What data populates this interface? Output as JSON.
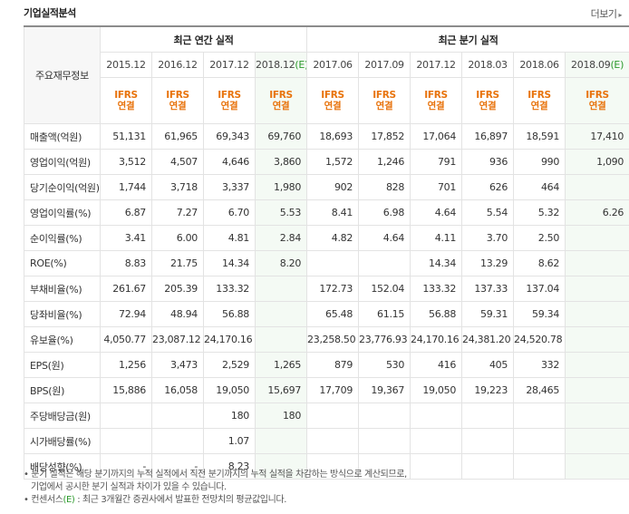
{
  "header": {
    "title": "기업실적분석",
    "more": "더보기"
  },
  "table": {
    "corner_label": "주요재무정보",
    "group_annual": "최근 연간 실적",
    "group_quarter": "최근 분기 실적",
    "periods": [
      "2015.12",
      "2016.12",
      "2017.12",
      "2018.12",
      "2017.06",
      "2017.09",
      "2017.12",
      "2018.03",
      "2018.06",
      "2018.09"
    ],
    "period_suffix": [
      "",
      "",
      "",
      "(E)",
      "",
      "",
      "",
      "",
      "",
      "(E)"
    ],
    "ifrs_line1": "IFRS",
    "ifrs_line2": "연결",
    "rows": [
      {
        "label": "매출액(억원)",
        "values": [
          "51,131",
          "61,965",
          "69,343",
          "69,760",
          "18,693",
          "17,852",
          "17,064",
          "16,897",
          "18,591",
          "17,410"
        ]
      },
      {
        "label": "영업이익(억원)",
        "values": [
          "3,512",
          "4,507",
          "4,646",
          "3,860",
          "1,572",
          "1,246",
          "791",
          "936",
          "990",
          "1,090"
        ]
      },
      {
        "label": "당기순이익(억원)",
        "values": [
          "1,744",
          "3,718",
          "3,337",
          "1,980",
          "902",
          "828",
          "701",
          "626",
          "464",
          ""
        ]
      },
      {
        "label": "영업이익률(%)",
        "values": [
          "6.87",
          "7.27",
          "6.70",
          "5.53",
          "8.41",
          "6.98",
          "4.64",
          "5.54",
          "5.32",
          "6.26"
        ]
      },
      {
        "label": "순이익률(%)",
        "values": [
          "3.41",
          "6.00",
          "4.81",
          "2.84",
          "4.82",
          "4.64",
          "4.11",
          "3.70",
          "2.50",
          ""
        ]
      },
      {
        "label": "ROE(%)",
        "values": [
          "8.83",
          "21.75",
          "14.34",
          "8.20",
          "",
          "",
          "14.34",
          "13.29",
          "8.62",
          ""
        ]
      },
      {
        "label": "부채비율(%)",
        "values": [
          "261.67",
          "205.39",
          "133.32",
          "",
          "172.73",
          "152.04",
          "133.32",
          "137.33",
          "137.04",
          ""
        ]
      },
      {
        "label": "당좌비율(%)",
        "values": [
          "72.94",
          "48.94",
          "56.88",
          "",
          "65.48",
          "61.15",
          "56.88",
          "59.31",
          "59.34",
          ""
        ]
      },
      {
        "label": "유보율(%)",
        "values": [
          "4,050.77",
          "23,087.12",
          "24,170.16",
          "",
          "23,258.50",
          "23,776.93",
          "24,170.16",
          "24,381.20",
          "24,520.78",
          ""
        ]
      },
      {
        "label": "EPS(원)",
        "values": [
          "1,256",
          "3,473",
          "2,529",
          "1,265",
          "879",
          "530",
          "416",
          "405",
          "332",
          ""
        ]
      },
      {
        "label": "BPS(원)",
        "values": [
          "15,886",
          "16,058",
          "19,050",
          "15,697",
          "17,709",
          "19,367",
          "19,050",
          "19,223",
          "28,465",
          ""
        ]
      },
      {
        "label": "주당배당금(원)",
        "values": [
          "",
          "",
          "180",
          "180",
          "",
          "",
          "",
          "",
          "",
          ""
        ]
      },
      {
        "label": "시가배당률(%)",
        "values": [
          "",
          "",
          "1.07",
          "",
          "",
          "",
          "",
          "",
          "",
          ""
        ]
      },
      {
        "label": "배당성향(%)",
        "values": [
          "-",
          "-",
          "8.23",
          "",
          "",
          "",
          "",
          "",
          "",
          ""
        ]
      }
    ]
  },
  "notes": {
    "line1": "분기 실적은 해당 분기까지의 누적 실적에서 직전 분기까지의 누적 실적을 차감하는 방식으로 계산되므로,",
    "line2": "기업에서 공시한 분기 실적과 차이가 있을 수 있습니다.",
    "line3_prefix": "컨센서스",
    "line3_mark": "(E)",
    "line3_rest": ": 최근 3개월간 증권사에서 발표한 전망치의 평균값입니다."
  }
}
